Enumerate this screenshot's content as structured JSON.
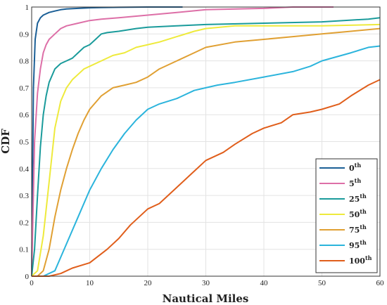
{
  "chart_data": {
    "type": "line",
    "title": "",
    "xlabel": "Nautical Miles",
    "ylabel": "CDF",
    "xlim": [
      0,
      60
    ],
    "ylim": [
      0,
      1
    ],
    "x_ticks": [
      "0",
      "10",
      "20",
      "30",
      "40",
      "50",
      "60"
    ],
    "y_ticks": [
      "0",
      "0.1",
      "0.2",
      "0.3",
      "0.4",
      "0.5",
      "0.6",
      "0.7",
      "0.8",
      "0.9",
      "1"
    ],
    "grid": true,
    "legend_position": "bottom-right",
    "series": [
      {
        "name": "0",
        "name_sup": "th",
        "color": "#1b5f96",
        "x": [
          0,
          0.3,
          0.6,
          1,
          1.5,
          2,
          3,
          4,
          5,
          6,
          8,
          10,
          12,
          15,
          20,
          26
        ],
        "y": [
          0,
          0.7,
          0.88,
          0.94,
          0.96,
          0.97,
          0.98,
          0.985,
          0.99,
          0.993,
          0.995,
          0.997,
          0.998,
          0.999,
          1.0,
          1.0
        ]
      },
      {
        "name": "5",
        "name_sup": "th",
        "color": "#dd6fa7",
        "x": [
          0,
          0.5,
          1,
          1.5,
          2,
          2.5,
          3,
          4,
          5,
          6,
          8,
          10,
          12,
          15,
          20,
          25,
          30,
          40,
          45,
          52
        ],
        "y": [
          0,
          0.5,
          0.68,
          0.77,
          0.83,
          0.86,
          0.88,
          0.9,
          0.92,
          0.93,
          0.94,
          0.95,
          0.955,
          0.96,
          0.97,
          0.98,
          0.99,
          0.995,
          1.0,
          1.0
        ]
      },
      {
        "name": "25",
        "name_sup": "th",
        "color": "#1a9b9b",
        "x": [
          0,
          0.5,
          1,
          1.5,
          2,
          2.5,
          3,
          4,
          5,
          6,
          7,
          8,
          9,
          10,
          11,
          12,
          13,
          15,
          18,
          20,
          25,
          30,
          40,
          50,
          58,
          60
        ],
        "y": [
          0,
          0.1,
          0.3,
          0.48,
          0.6,
          0.67,
          0.72,
          0.77,
          0.79,
          0.8,
          0.81,
          0.83,
          0.85,
          0.86,
          0.88,
          0.9,
          0.905,
          0.91,
          0.92,
          0.925,
          0.93,
          0.935,
          0.94,
          0.945,
          0.955,
          0.96
        ]
      },
      {
        "name": "50",
        "name_sup": "th",
        "color": "#eeea3c",
        "x": [
          0,
          1,
          2,
          3,
          4,
          5,
          6,
          7,
          8,
          9,
          10,
          12,
          14,
          16,
          18,
          20,
          22,
          25,
          28,
          30,
          35,
          40,
          50,
          60
        ],
        "y": [
          0,
          0.02,
          0.15,
          0.35,
          0.55,
          0.65,
          0.7,
          0.73,
          0.75,
          0.77,
          0.78,
          0.8,
          0.82,
          0.83,
          0.85,
          0.86,
          0.87,
          0.89,
          0.91,
          0.92,
          0.93,
          0.93,
          0.93,
          0.935
        ]
      },
      {
        "name": "75",
        "name_sup": "th",
        "color": "#e0a033",
        "x": [
          0,
          1,
          2,
          3,
          4,
          5,
          6,
          7,
          8,
          9,
          10,
          12,
          14,
          16,
          18,
          20,
          22,
          25,
          28,
          30,
          35,
          40,
          45,
          50,
          55,
          60
        ],
        "y": [
          0,
          0,
          0.02,
          0.1,
          0.22,
          0.32,
          0.4,
          0.47,
          0.53,
          0.58,
          0.62,
          0.67,
          0.7,
          0.71,
          0.72,
          0.74,
          0.77,
          0.8,
          0.83,
          0.85,
          0.87,
          0.88,
          0.89,
          0.9,
          0.91,
          0.92
        ]
      },
      {
        "name": "95",
        "name_sup": "th",
        "color": "#2bb4dc",
        "x": [
          0,
          2,
          4,
          6,
          8,
          10,
          12,
          14,
          16,
          18,
          20,
          22,
          25,
          28,
          30,
          32,
          35,
          40,
          45,
          48,
          50,
          55,
          58,
          60
        ],
        "y": [
          0,
          0,
          0.02,
          0.12,
          0.22,
          0.32,
          0.4,
          0.47,
          0.53,
          0.58,
          0.62,
          0.64,
          0.66,
          0.69,
          0.7,
          0.71,
          0.72,
          0.74,
          0.76,
          0.78,
          0.8,
          0.83,
          0.85,
          0.855
        ]
      },
      {
        "name": "100",
        "name_sup": "th",
        "color": "#e05e1b",
        "x": [
          0,
          3,
          5,
          7,
          10,
          13,
          15,
          17,
          20,
          22,
          25,
          28,
          30,
          33,
          35,
          38,
          40,
          43,
          45,
          48,
          50,
          53,
          55,
          58,
          60
        ],
        "y": [
          0,
          0,
          0.01,
          0.03,
          0.05,
          0.1,
          0.14,
          0.19,
          0.25,
          0.27,
          0.33,
          0.39,
          0.43,
          0.46,
          0.49,
          0.53,
          0.55,
          0.57,
          0.6,
          0.61,
          0.62,
          0.64,
          0.67,
          0.71,
          0.73
        ]
      }
    ]
  }
}
